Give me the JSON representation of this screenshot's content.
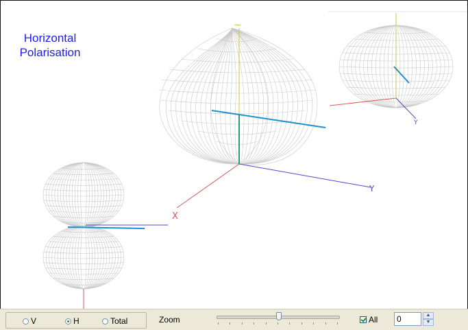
{
  "view": {
    "title_line1": "Horizontal",
    "title_line2": "Polarisation",
    "colors": {
      "title": "#1a1aff",
      "mesh": "#c8c8c8",
      "x_axis": "#e05555",
      "y_axis": "#4a4acc",
      "z_axis": "#c9c944",
      "cut_line": "#1e8fd0"
    },
    "axis_glyph_x": "X",
    "axis_glyph_y": "Y",
    "axis_glyph_z": "~"
  },
  "toolbar": {
    "polarisation_options": [
      {
        "label": "V",
        "selected": false
      },
      {
        "label": "H",
        "selected": true
      },
      {
        "label": "Total",
        "selected": false
      }
    ],
    "zoom_label": "Zoom",
    "zoom_level": 0.51,
    "all_label": "All",
    "all_checked": true,
    "spinner_value": "0",
    "spinner_up_icon": "chevron-up-icon",
    "spinner_down_icon": "chevron-down-icon"
  }
}
